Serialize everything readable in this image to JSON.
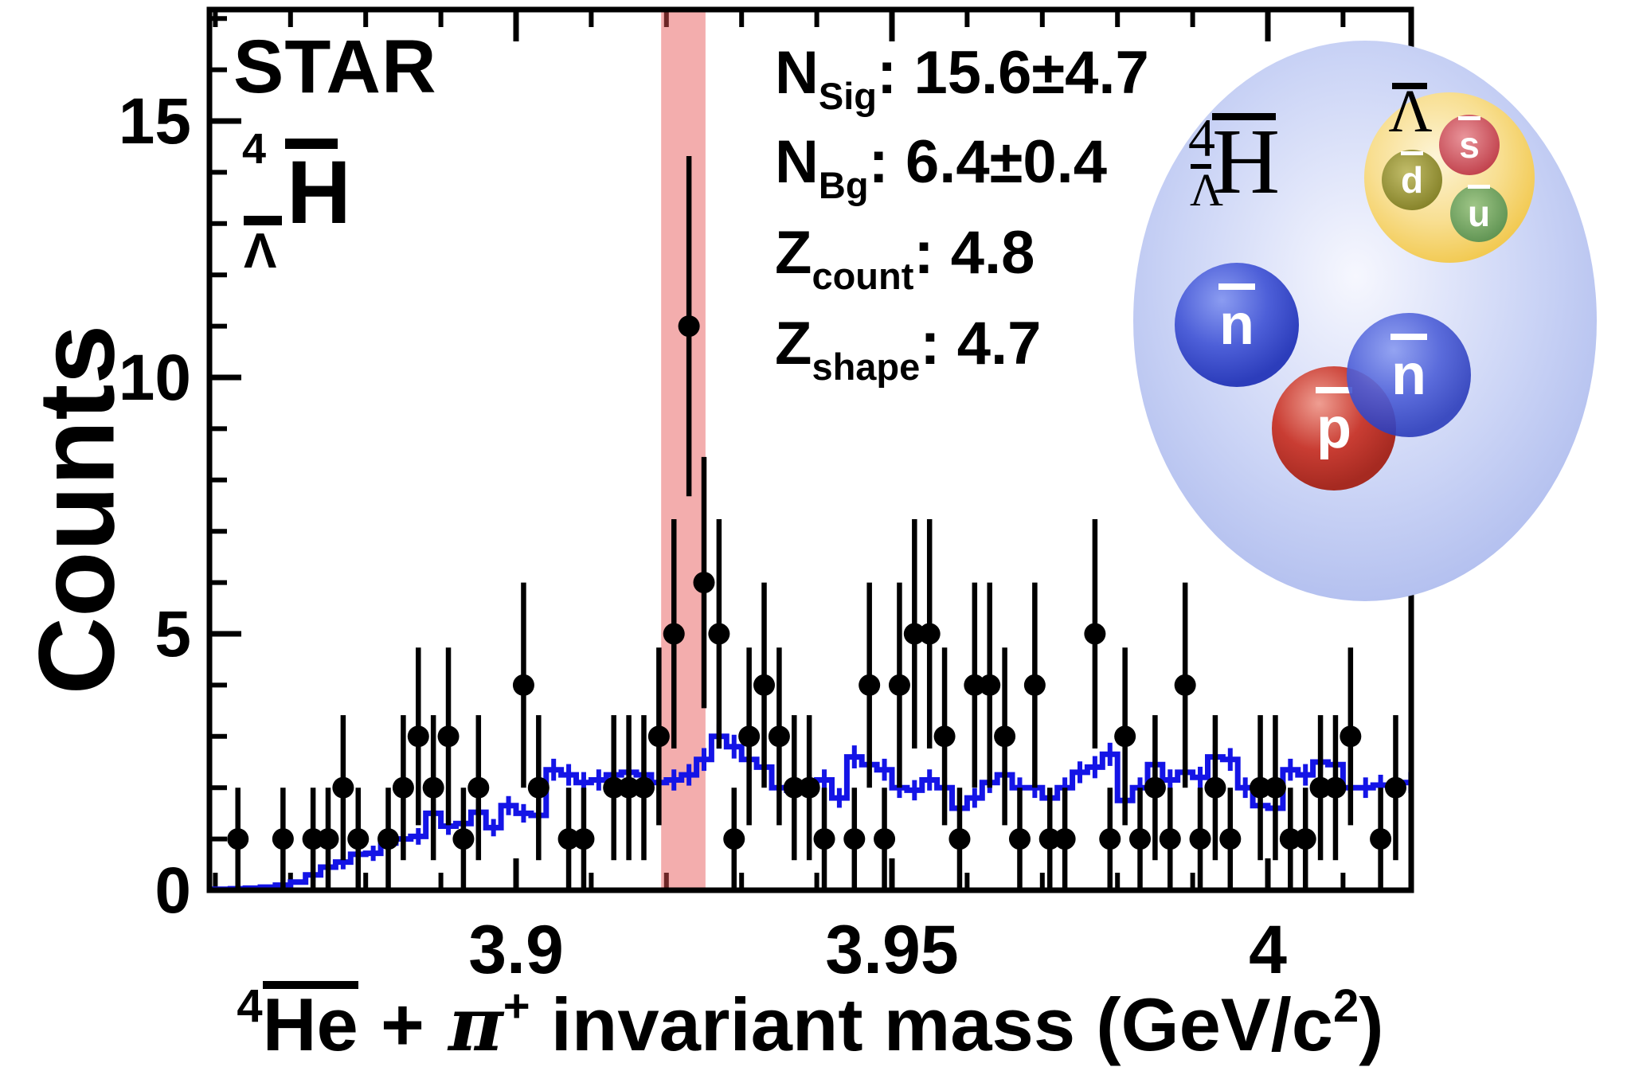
{
  "figure": {
    "experiment": "STAR",
    "particle": {
      "sup": "4",
      "sub": "Λ",
      "main": "H"
    },
    "stats": [
      {
        "base": "N",
        "sub": "Sig",
        "value": "15.6±4.7"
      },
      {
        "base": "N",
        "sub": "Bg",
        "value": "6.4±0.4"
      },
      {
        "base": "Z",
        "sub": "count",
        "value": "4.8"
      },
      {
        "base": "Z",
        "sub": "shape",
        "value": "4.7"
      }
    ]
  },
  "chart_data": {
    "type": "bar",
    "subtype": "histogram-with-data-points",
    "title": "STAR",
    "ylabel": "Counts",
    "xlabel": "⁴He + π⁺ invariant mass (GeV/c²)",
    "xlabel_parts": {
      "nucleus_sup": "4",
      "nucleus": "He",
      "plus": "+",
      "pion": "π",
      "pion_sup": "+",
      "rest": " invariant mass (GeV/c",
      "exponent": "2",
      "close": ")"
    },
    "xlim": [
      3.8592,
      4.0191
    ],
    "ylim": [
      0,
      17.2
    ],
    "xticks": [
      {
        "value": 3.9,
        "label": "3.9"
      },
      {
        "value": 3.95,
        "label": "3.95"
      },
      {
        "value": 4.0,
        "label": "4"
      }
    ],
    "yticks": [
      {
        "value": 0,
        "label": "0"
      },
      {
        "value": 5,
        "label": "5"
      },
      {
        "value": 10,
        "label": "10"
      },
      {
        "value": 15,
        "label": "15"
      }
    ],
    "minor_tick_step_x": 0.01,
    "minor_tick_step_y": 1,
    "grid": false,
    "signal_region": {
      "from": 3.9193,
      "to": 3.9252,
      "color": "rgba(229,81,81,0.47)"
    },
    "colors": {
      "data_points": "#000000",
      "background_hist": "#1414e6",
      "frame": "#000000"
    },
    "data_points": [
      [
        3.863,
        1
      ],
      [
        3.869,
        1
      ],
      [
        3.873,
        1
      ],
      [
        3.875,
        1
      ],
      [
        3.877,
        2
      ],
      [
        3.879,
        1
      ],
      [
        3.883,
        1
      ],
      [
        3.885,
        2
      ],
      [
        3.887,
        3
      ],
      [
        3.889,
        2
      ],
      [
        3.891,
        3
      ],
      [
        3.893,
        1
      ],
      [
        3.895,
        2
      ],
      [
        3.901,
        4
      ],
      [
        3.903,
        2
      ],
      [
        3.907,
        1
      ],
      [
        3.909,
        1
      ],
      [
        3.913,
        2
      ],
      [
        3.915,
        2
      ],
      [
        3.917,
        2
      ],
      [
        3.919,
        3
      ],
      [
        3.921,
        5
      ],
      [
        3.923,
        11
      ],
      [
        3.925,
        6
      ],
      [
        3.927,
        5
      ],
      [
        3.929,
        1
      ],
      [
        3.931,
        3
      ],
      [
        3.933,
        4
      ],
      [
        3.935,
        3
      ],
      [
        3.937,
        2
      ],
      [
        3.939,
        2
      ],
      [
        3.941,
        1
      ],
      [
        3.945,
        1
      ],
      [
        3.947,
        4
      ],
      [
        3.949,
        1
      ],
      [
        3.951,
        4
      ],
      [
        3.953,
        5
      ],
      [
        3.955,
        5
      ],
      [
        3.957,
        3
      ],
      [
        3.959,
        1
      ],
      [
        3.961,
        4
      ],
      [
        3.963,
        4
      ],
      [
        3.965,
        3
      ],
      [
        3.967,
        1
      ],
      [
        3.969,
        4
      ],
      [
        3.971,
        1
      ],
      [
        3.973,
        1
      ],
      [
        3.977,
        5
      ],
      [
        3.979,
        1
      ],
      [
        3.981,
        3
      ],
      [
        3.983,
        1
      ],
      [
        3.985,
        2
      ],
      [
        3.987,
        1
      ],
      [
        3.989,
        4
      ],
      [
        3.991,
        1
      ],
      [
        3.993,
        2
      ],
      [
        3.995,
        1
      ],
      [
        3.999,
        2
      ],
      [
        4.001,
        2
      ],
      [
        4.003,
        1
      ],
      [
        4.005,
        1
      ],
      [
        4.007,
        2
      ],
      [
        4.009,
        2
      ],
      [
        4.011,
        3
      ],
      [
        4.015,
        1
      ],
      [
        4.017,
        2
      ]
    ],
    "data_point_errors": "sqrt(N)",
    "background_hist": {
      "bin_start": 3.86,
      "bin_width": 0.002,
      "values": [
        0.02,
        0.03,
        0.04,
        0.06,
        0.1,
        0.16,
        0.3,
        0.45,
        0.55,
        0.7,
        0.72,
        0.92,
        1.0,
        1.05,
        1.5,
        1.25,
        1.3,
        1.52,
        1.22,
        1.65,
        1.5,
        1.46,
        2.35,
        2.25,
        2.1,
        2.15,
        2.25,
        2.3,
        2.25,
        2.1,
        2.15,
        2.25,
        2.55,
        3.0,
        2.8,
        2.55,
        2.4,
        2.0,
        1.95,
        2.05,
        2.15,
        1.8,
        2.6,
        2.45,
        2.35,
        2.0,
        1.95,
        2.15,
        2.0,
        1.6,
        1.8,
        2.1,
        2.25,
        2.0,
        2.0,
        1.8,
        2.0,
        2.3,
        2.4,
        2.65,
        1.75,
        2.0,
        2.45,
        2.15,
        2.3,
        2.2,
        2.6,
        2.55,
        2.0,
        1.65,
        1.6,
        2.35,
        2.25,
        2.5,
        2.45,
        2.0,
        2.0,
        2.05,
        2.0,
        2.1
      ]
    }
  },
  "inset": {
    "nucleus_label": {
      "sup": "4",
      "sub": "Λ",
      "main": "H"
    },
    "lambda_label": "Λ",
    "quarks": [
      {
        "label": "s"
      },
      {
        "label": "d"
      },
      {
        "label": "u"
      }
    ],
    "nucleons": [
      {
        "label": "n",
        "type": "n"
      },
      {
        "label": "p",
        "type": "p"
      },
      {
        "label": "n",
        "type": "n"
      }
    ],
    "colors": {
      "sphere": {
        "center": "#f6f7fe",
        "mid": "#ccd5f6",
        "edge": "#a9b7ec"
      },
      "lambda": {
        "center": "#fdf4d6",
        "mid": "#f8df92",
        "edge": "#f1c647"
      },
      "quark_s": {
        "center": "#e9959b",
        "edge": "#bf3d48"
      },
      "quark_d": {
        "center": "#c2bd6a",
        "edge": "#827f25"
      },
      "quark_u": {
        "center": "#9fc687",
        "edge": "#5c9150"
      },
      "nucleon_n": {
        "center": "#8b9cf1",
        "mid": "#4d5fd8",
        "edge": "#2c3dbb"
      },
      "nucleon_p": {
        "center": "#ef9e92",
        "mid": "#c93d33",
        "edge": "#a62a21"
      }
    }
  }
}
